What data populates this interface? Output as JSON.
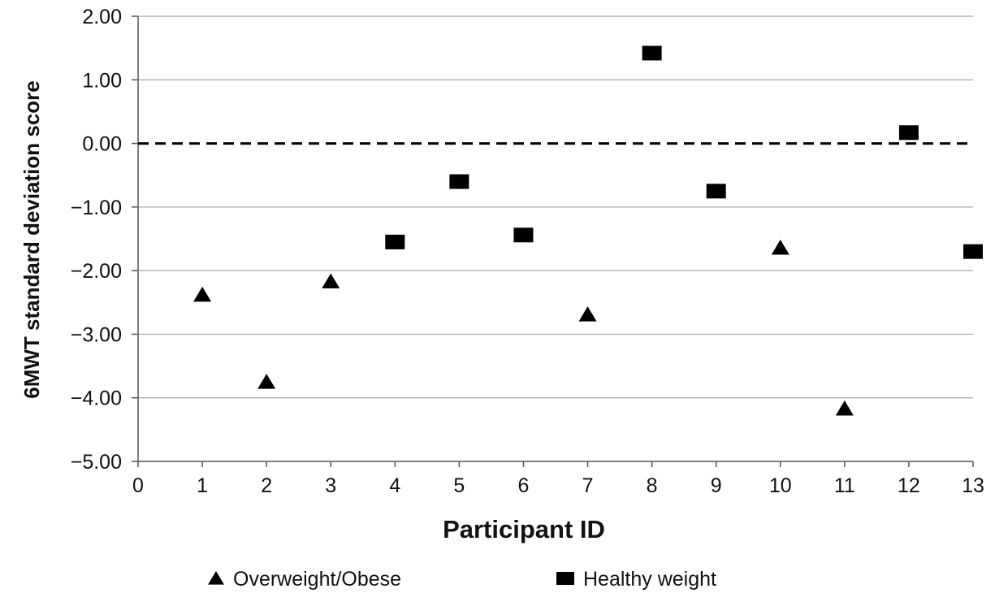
{
  "chart_data": {
    "type": "scatter",
    "xlabel": "Participant ID",
    "ylabel": "6MWT standard deviation score",
    "xlim": [
      0,
      13
    ],
    "ylim": [
      -5,
      2
    ],
    "x_ticks": [
      "0",
      "1",
      "2",
      "3",
      "4",
      "5",
      "6",
      "7",
      "8",
      "9",
      "10",
      "11",
      "12",
      "13"
    ],
    "y_ticks": [
      "2.00",
      "1.00",
      "0.00",
      "−1.00",
      "−2.00",
      "−3.00",
      "−4.00",
      "−5.00"
    ],
    "y_tick_values": [
      2,
      1,
      0,
      -1,
      -2,
      -3,
      -4,
      -5
    ],
    "grid": true,
    "reference_line": {
      "y": 0,
      "style": "dashed"
    },
    "legend_position": "bottom",
    "series": [
      {
        "name": "Overweight/Obese",
        "marker": "triangle",
        "color": "#000000",
        "points": [
          {
            "x": 1,
            "y": -2.38
          },
          {
            "x": 2,
            "y": -3.75
          },
          {
            "x": 3,
            "y": -2.17
          },
          {
            "x": 7,
            "y": -2.69
          },
          {
            "x": 10,
            "y": -1.64
          },
          {
            "x": 11,
            "y": -4.17
          }
        ]
      },
      {
        "name": "Healthy weight",
        "marker": "square",
        "color": "#000000",
        "points": [
          {
            "x": 4,
            "y": -1.55
          },
          {
            "x": 5,
            "y": -0.6
          },
          {
            "x": 6,
            "y": -1.44
          },
          {
            "x": 8,
            "y": 1.42
          },
          {
            "x": 9,
            "y": -0.75
          },
          {
            "x": 12,
            "y": 0.17
          },
          {
            "x": 13,
            "y": -1.7
          }
        ]
      }
    ]
  }
}
